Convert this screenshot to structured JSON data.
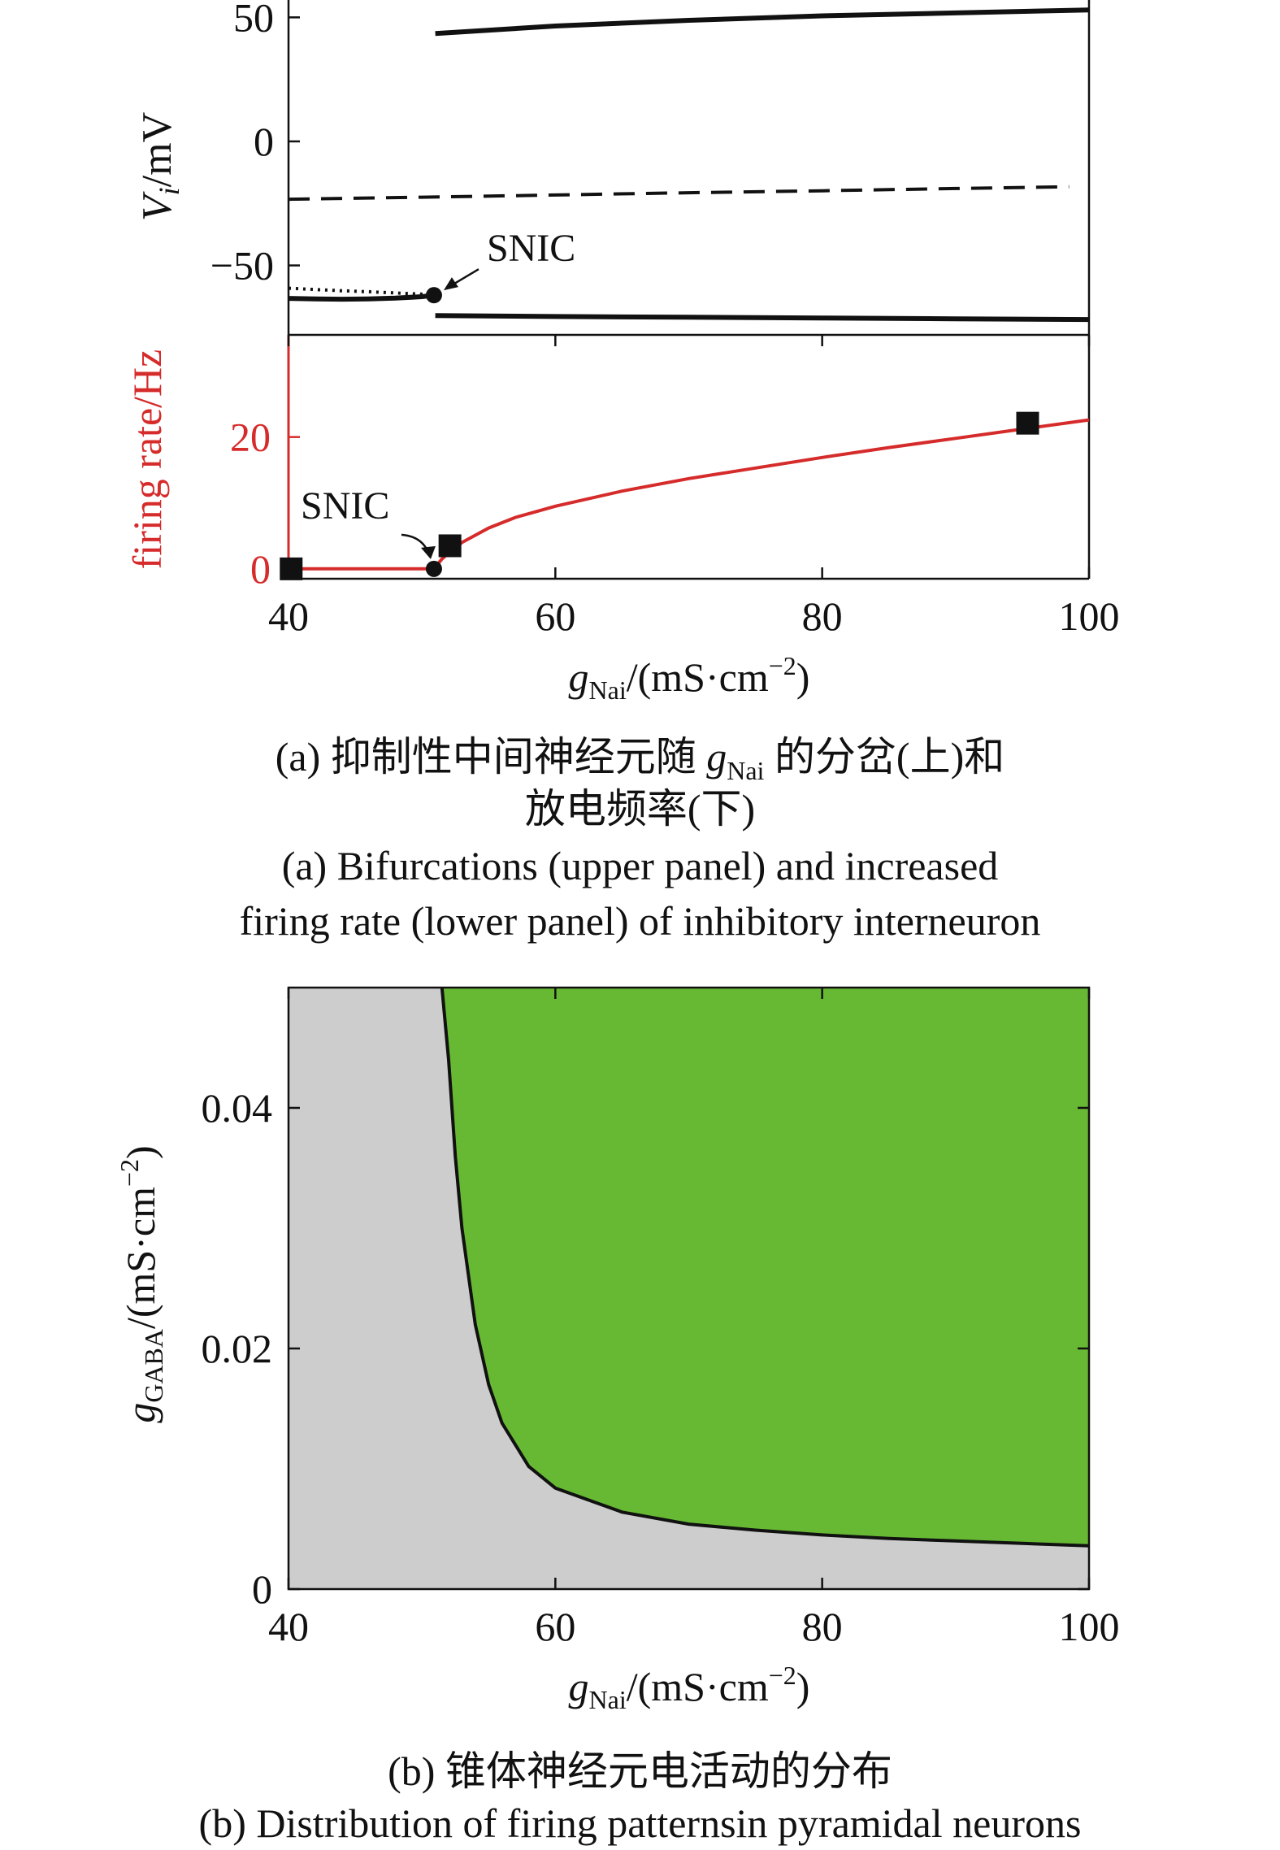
{
  "panel_a": {
    "caption_cn_line1_pre": "(a) 抑制性中间神经元随",
    "caption_cn_line1_g": "g",
    "caption_cn_line1_sub": "Nai",
    "caption_cn_line1_post": "的分岔(上)和",
    "caption_cn_line2": "放电频率(下)",
    "caption_en_line1": "(a) Bifurcations (upper panel) and increased",
    "caption_en_line2": "firing rate (lower panel) of inhibitory interneuron"
  },
  "panel_b": {
    "caption_cn": "(b) 锥体神经元电活动的分布",
    "caption_en": "(b) Distribution of firing patternsin pyramidal neurons"
  },
  "colors": {
    "rate_curve": "#d62b2b",
    "region_gray": "#cdcdcd",
    "region_green": "#67b934",
    "axis": "#111111"
  },
  "chart_data": [
    {
      "type": "line",
      "panel": "a-upper",
      "ylabel_italic": "V",
      "ylabel_sub": "i",
      "ylabel_rest": "/mV",
      "xlim": [
        40,
        100
      ],
      "ylim": [
        -78,
        57
      ],
      "yticks": [
        50,
        0,
        -50
      ],
      "ytick_labels": [
        "50",
        "0",
        "−50"
      ],
      "annotation": "SNIC",
      "snic_point": {
        "x": 50.9,
        "y": -62
      },
      "series": [
        {
          "style": "solid",
          "x": [
            51,
            60,
            70,
            80,
            90,
            100
          ],
          "y": [
            43.5,
            46.5,
            48.8,
            50.6,
            51.8,
            53.0
          ]
        },
        {
          "style": "dashed",
          "x": [
            40,
            50,
            60,
            70,
            80,
            90,
            98.5
          ],
          "y": [
            -23.3,
            -22.5,
            -21.6,
            -20.7,
            -19.9,
            -19.0,
            -18.3
          ]
        },
        {
          "style": "dotted",
          "x": [
            40,
            42,
            44,
            46,
            48,
            50,
            50.9
          ],
          "y": [
            -59.2,
            -59.7,
            -60.2,
            -60.6,
            -61.1,
            -61.6,
            -62
          ]
        },
        {
          "style": "solid",
          "x": [
            40,
            42,
            44,
            46,
            48,
            50,
            50.9
          ],
          "y": [
            -63.3,
            -63.5,
            -63.6,
            -63.5,
            -63.2,
            -62.6,
            -62
          ]
        },
        {
          "style": "solid",
          "x": [
            51,
            60,
            70,
            80,
            90,
            100
          ],
          "y": [
            -70.2,
            -70.6,
            -70.9,
            -71.2,
            -71.5,
            -71.8
          ]
        }
      ]
    },
    {
      "type": "line",
      "panel": "a-lower",
      "ylabel": "firing rate/Hz",
      "xlabel_g": "g",
      "xlabel_sub": "Nai",
      "xlabel_rest": "/(mS·cm",
      "xlabel_exp": "−2",
      "xlabel_close": ")",
      "xlim": [
        40,
        100
      ],
      "ylim": [
        -1.5,
        35.5
      ],
      "xticks": [
        40,
        60,
        80,
        100
      ],
      "yticks": [
        0,
        20
      ],
      "annotation": "SNIC",
      "snic_point": {
        "x": 50.9,
        "y": 0
      },
      "series": [
        {
          "name": "",
          "x": [
            40,
            45,
            50.9,
            51.5,
            52,
            53,
            55,
            57,
            60,
            65,
            70,
            75,
            80,
            85,
            90,
            95,
            100
          ],
          "y": [
            0,
            0,
            0,
            1.5,
            2.4,
            4.0,
            6.2,
            7.8,
            9.5,
            11.8,
            13.7,
            15.3,
            16.9,
            18.4,
            19.8,
            21.2,
            22.6
          ]
        }
      ],
      "markers": [
        {
          "x": 40.2,
          "y": 0
        },
        {
          "x": 52.1,
          "y": 3.5
        },
        {
          "x": 95.4,
          "y": 22.1
        }
      ]
    },
    {
      "type": "area",
      "panel": "b",
      "xlabel_g": "g",
      "xlabel_sub": "Nai",
      "xlabel_rest": "/(mS·cm",
      "xlabel_exp": "−2",
      "xlabel_close": ")",
      "ylabel_g": "g",
      "ylabel_sub": "GABA",
      "ylabel_rest": "/(mS·cm",
      "ylabel_exp": "−2",
      "ylabel_close": ")",
      "xlim": [
        40,
        100
      ],
      "ylim": [
        0,
        0.05
      ],
      "xticks": [
        40,
        60,
        80,
        100
      ],
      "yticks": [
        0,
        0.02,
        0.04
      ],
      "ytick_labels": [
        "0",
        "0.02",
        "0.04"
      ],
      "boundary": {
        "x": [
          51.5,
          52.0,
          52.5,
          53.0,
          54.0,
          55.0,
          56.0,
          58.0,
          60.0,
          65.0,
          70.0,
          75.0,
          80.0,
          85.0,
          90.0,
          95.0,
          100.0
        ],
        "y": [
          0.05,
          0.044,
          0.036,
          0.03,
          0.022,
          0.017,
          0.0138,
          0.0102,
          0.0084,
          0.0064,
          0.0054,
          0.0049,
          0.0045,
          0.0042,
          0.004,
          0.0038,
          0.0036
        ]
      }
    }
  ]
}
